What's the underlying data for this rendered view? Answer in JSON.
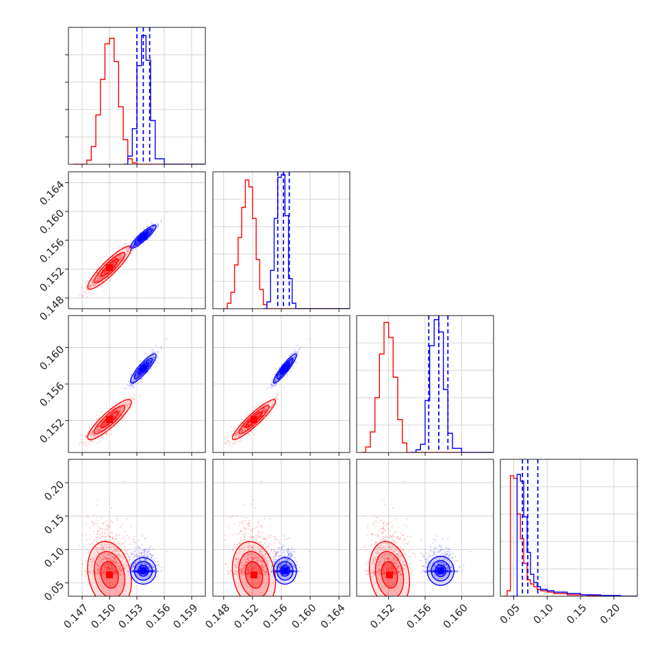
{
  "chart_data": {
    "type": "corner",
    "title": "",
    "grid": true,
    "legend": "none",
    "colors": {
      "series_a": "#ff0000",
      "series_b": "#0000ff"
    },
    "parameters": [
      {
        "range": [
          0.1455,
          0.1605
        ],
        "ticks": [
          0.147,
          0.15,
          0.153,
          0.156,
          0.159
        ],
        "tick_labels": [
          "0.147",
          "0.150",
          "0.153",
          "0.156",
          "0.159"
        ]
      },
      {
        "range": [
          0.1465,
          0.1655
        ],
        "ticks": [
          0.148,
          0.152,
          0.156,
          0.16,
          0.164
        ],
        "tick_labels": [
          "0.148",
          "0.152",
          "0.156",
          "0.160",
          "0.164"
        ]
      },
      {
        "range": [
          0.1485,
          0.1635
        ],
        "ticks": [
          0.152,
          0.156,
          0.16
        ],
        "tick_labels": [
          "0.152",
          "0.156",
          "0.160"
        ]
      },
      {
        "range": [
          0.03,
          0.235
        ],
        "ticks": [
          0.05,
          0.1,
          0.15,
          0.2
        ],
        "tick_labels": [
          "0.05",
          "0.10",
          "0.15",
          "0.20"
        ]
      }
    ],
    "series": [
      {
        "color": "#ff0000",
        "mean": [
          0.15,
          0.1522,
          0.1521,
          0.062
        ],
        "sd": [
          0.0012,
          0.0015,
          0.0011,
          0.025
        ],
        "corr": [
          [
            1.0,
            0.9,
            0.88,
            -0.2
          ],
          [
            0.9,
            1.0,
            0.92,
            -0.2
          ],
          [
            0.88,
            0.92,
            1.0,
            -0.2
          ],
          [
            -0.2,
            -0.2,
            -0.2,
            1.0
          ]
        ],
        "hist_1d": [
          [
            0.146,
            0.0,
            0.1475,
            0.03,
            0.148,
            0.13,
            0.1485,
            0.36,
            0.149,
            0.62,
            0.1495,
            0.88,
            0.15,
            0.92,
            0.1505,
            0.75,
            0.151,
            0.42,
            0.1515,
            0.18,
            0.152,
            0.04,
            0.1525,
            0.01,
            0.153,
            0.0
          ],
          [
            0.148,
            0.0,
            0.1485,
            0.04,
            0.149,
            0.12,
            0.1495,
            0.32,
            0.15,
            0.52,
            0.1505,
            0.74,
            0.151,
            0.94,
            0.1515,
            0.89,
            0.152,
            0.66,
            0.1525,
            0.36,
            0.153,
            0.14,
            0.1535,
            0.03,
            0.154,
            0.0
          ],
          [
            0.149,
            0.0,
            0.1495,
            0.04,
            0.15,
            0.15,
            0.1505,
            0.4,
            0.151,
            0.72,
            0.1515,
            0.95,
            0.152,
            0.84,
            0.1525,
            0.55,
            0.153,
            0.24,
            0.1535,
            0.07,
            0.154,
            0.0
          ],
          [
            0.035,
            0.0,
            0.04,
            0.04,
            0.045,
            0.88,
            0.05,
            0.86,
            0.055,
            0.6,
            0.06,
            0.42,
            0.065,
            0.24,
            0.07,
            0.12,
            0.075,
            0.09,
            0.08,
            0.07,
            0.085,
            0.05,
            0.09,
            0.04,
            0.1,
            0.03,
            0.11,
            0.02,
            0.13,
            0.01,
            0.16,
            0.005,
            0.2,
            0.0
          ]
        ]
      },
      {
        "color": "#0000ff",
        "mean": [
          0.1537,
          0.1565,
          0.1577,
          0.068
        ],
        "sd": [
          0.0007,
          0.0008,
          0.0008,
          0.01
        ],
        "corr": [
          [
            1.0,
            0.9,
            0.88,
            0.0
          ],
          [
            0.9,
            1.0,
            0.92,
            0.0
          ],
          [
            0.88,
            0.92,
            1.0,
            0.0
          ],
          [
            0.0,
            0.0,
            0.0,
            1.0
          ]
        ],
        "quantile_lines": [
          [
            0.153,
            0.1537,
            0.1544
          ],
          [
            0.1555,
            0.1563,
            0.1571
          ],
          [
            0.1564,
            0.1575,
            0.1585
          ],
          [
            0.063,
            0.071,
            0.086
          ]
        ],
        "hist_1d": [
          [
            0.1515,
            0.0,
            0.152,
            0.06,
            0.1525,
            0.26,
            0.153,
            0.72,
            0.1535,
            0.94,
            0.154,
            0.76,
            0.1545,
            0.32,
            0.155,
            0.04,
            0.156,
            0.0
          ],
          [
            0.1535,
            0.0,
            0.154,
            0.05,
            0.1545,
            0.28,
            0.155,
            0.66,
            0.1555,
            0.96,
            0.156,
            0.98,
            0.1565,
            0.68,
            0.157,
            0.22,
            0.1575,
            0.04,
            0.158,
            0.0
          ],
          [
            0.1545,
            0.0,
            0.155,
            0.02,
            0.1555,
            0.06,
            0.156,
            0.38,
            0.1565,
            0.78,
            0.157,
            0.97,
            0.1575,
            0.88,
            0.158,
            0.46,
            0.1585,
            0.14,
            0.159,
            0.03,
            0.16,
            0.0
          ],
          [
            0.045,
            0.0,
            0.05,
            0.0,
            0.055,
            0.89,
            0.06,
            0.84,
            0.065,
            0.58,
            0.07,
            0.32,
            0.075,
            0.16,
            0.08,
            0.1,
            0.085,
            0.07,
            0.09,
            0.05,
            0.1,
            0.04,
            0.11,
            0.03,
            0.13,
            0.02,
            0.15,
            0.01,
            0.18,
            0.005,
            0.21,
            0.0
          ]
        ]
      }
    ]
  }
}
